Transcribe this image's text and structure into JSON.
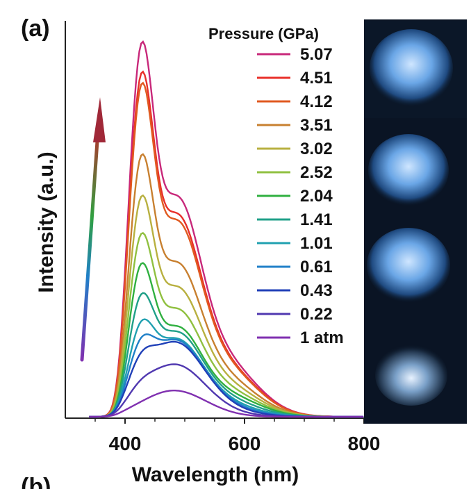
{
  "panel_label": "(a)",
  "next_panel_label": "(b)",
  "chart_data": {
    "type": "line",
    "xlabel": "Wavelength (nm)",
    "ylabel": "Intensity (a.u.)",
    "xlim": [
      300,
      800
    ],
    "ylim": [
      0,
      1
    ],
    "x_ticks": [
      400,
      600,
      800
    ],
    "y_ticks_shown": false,
    "legend": {
      "title": "Pressure (GPa)",
      "position": "top-right"
    },
    "peak_wavelength_nm": 425,
    "shoulder_wavelength_nm": 485,
    "series": [
      {
        "name": "5.07",
        "color": "#c8287a",
        "peak": 1.0
      },
      {
        "name": "4.51",
        "color": "#e8302a",
        "peak": 0.92
      },
      {
        "name": "4.12",
        "color": "#e05a20",
        "peak": 0.89
      },
      {
        "name": "3.51",
        "color": "#c88030",
        "peak": 0.7
      },
      {
        "name": "3.02",
        "color": "#b8b040",
        "peak": 0.59
      },
      {
        "name": "2.52",
        "color": "#90c040",
        "peak": 0.49
      },
      {
        "name": "2.04",
        "color": "#30b040",
        "peak": 0.41
      },
      {
        "name": "1.41",
        "color": "#20a088",
        "peak": 0.33
      },
      {
        "name": "1.01",
        "color": "#20a0b0",
        "peak": 0.26
      },
      {
        "name": "0.61",
        "color": "#2080c8",
        "peak": 0.22
      },
      {
        "name": "0.43",
        "color": "#2040b8",
        "peak": 0.2
      },
      {
        "name": "0.22",
        "color": "#5038b0",
        "peak": 0.14
      },
      {
        "name": "1 atm",
        "color": "#8030b0",
        "peak": 0.07
      }
    ],
    "arrow": {
      "direction": "increasing pressure",
      "color_start": "#8030b0",
      "color_end": "#c0282a"
    },
    "inset_photos": {
      "count": 4,
      "description_colors": [
        "#0a1020",
        "#7fb6f0"
      ]
    }
  }
}
